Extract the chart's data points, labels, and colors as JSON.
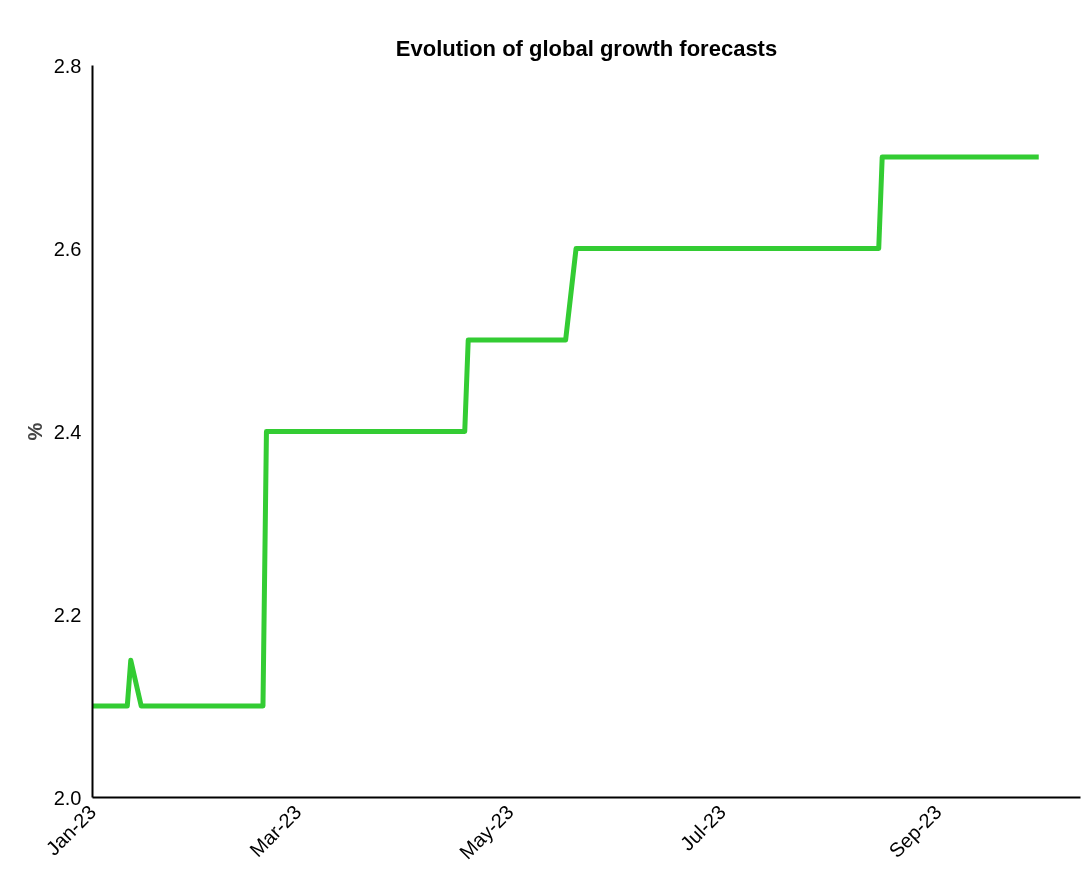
{
  "chart_data": {
    "type": "line",
    "title": "Evolution of global growth forecasts",
    "ylabel": "%",
    "x": [
      "2023-01-01",
      "2023-01-11",
      "2023-01-12",
      "2023-01-15",
      "2023-02-19",
      "2023-02-20",
      "2023-04-18",
      "2023-04-19",
      "2023-05-17",
      "2023-05-20",
      "2023-08-15",
      "2023-08-16",
      "2023-09-30"
    ],
    "series": [
      {
        "color": "#33cc33",
        "values": [
          2.1,
          2.1,
          2.15,
          2.1,
          2.1,
          2.4,
          2.4,
          2.5,
          2.5,
          2.6,
          2.6,
          2.7,
          2.7
        ]
      }
    ],
    "xlim": [
      "2023-01-01",
      "2023-10-12"
    ],
    "xticks": [
      {
        "value": "2023-01-01",
        "label": "Jan-23"
      },
      {
        "value": "2023-03-01",
        "label": "Mar-23"
      },
      {
        "value": "2023-05-01",
        "label": "May-23"
      },
      {
        "value": "2023-07-01",
        "label": "Jul-23"
      },
      {
        "value": "2023-09-01",
        "label": "Sep-23"
      }
    ],
    "ylim": [
      2.0,
      2.8
    ],
    "yticks": [
      {
        "value": 2.0,
        "label": "2.0"
      },
      {
        "value": 2.2,
        "label": "2.2"
      },
      {
        "value": 2.4,
        "label": "2.4"
      },
      {
        "value": 2.6,
        "label": "2.6"
      },
      {
        "value": 2.8,
        "label": "2.8"
      }
    ],
    "grid": false,
    "line_style": "solid"
  }
}
